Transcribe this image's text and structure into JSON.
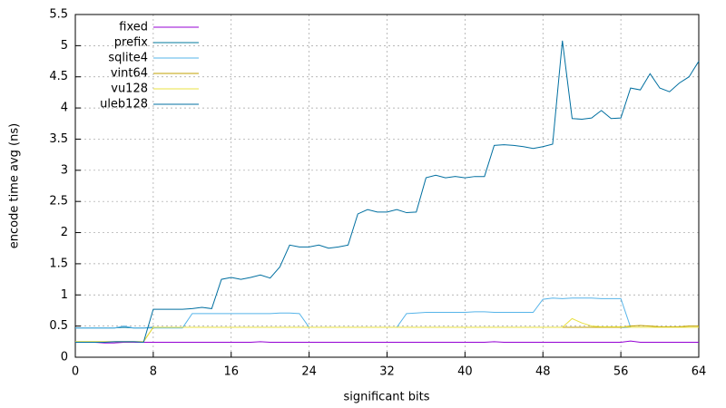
{
  "chart_data": {
    "type": "line",
    "x_label": "significant bits",
    "y_label": "encode time avg (ns)",
    "x": [
      0,
      1,
      2,
      3,
      4,
      5,
      6,
      7,
      8,
      9,
      10,
      11,
      12,
      13,
      14,
      15,
      16,
      17,
      18,
      19,
      20,
      21,
      22,
      23,
      24,
      25,
      26,
      27,
      28,
      29,
      30,
      31,
      32,
      33,
      34,
      35,
      36,
      37,
      38,
      39,
      40,
      41,
      42,
      43,
      44,
      45,
      46,
      47,
      48,
      49,
      50,
      51,
      52,
      53,
      54,
      55,
      56,
      57,
      58,
      59,
      60,
      61,
      62,
      63,
      64
    ],
    "xlim": [
      0,
      64
    ],
    "xticks": [
      0,
      8,
      16,
      24,
      32,
      40,
      48,
      56,
      64
    ],
    "ylim": [
      0,
      5.5
    ],
    "yticks": [
      0,
      0.5,
      1,
      1.5,
      2,
      2.5,
      3,
      3.5,
      4,
      4.5,
      5,
      5.5
    ],
    "grid": true,
    "legend": "top-left",
    "series": [
      {
        "name": "fixed",
        "color": "#9400d3",
        "values": [
          0.24,
          0.24,
          0.24,
          0.23,
          0.23,
          0.24,
          0.24,
          0.24,
          0.24,
          0.24,
          0.24,
          0.24,
          0.24,
          0.24,
          0.24,
          0.24,
          0.24,
          0.24,
          0.24,
          0.25,
          0.24,
          0.24,
          0.24,
          0.24,
          0.24,
          0.24,
          0.24,
          0.24,
          0.24,
          0.24,
          0.24,
          0.24,
          0.24,
          0.24,
          0.24,
          0.24,
          0.24,
          0.24,
          0.24,
          0.24,
          0.24,
          0.24,
          0.24,
          0.25,
          0.24,
          0.24,
          0.24,
          0.24,
          0.24,
          0.24,
          0.24,
          0.24,
          0.24,
          0.24,
          0.24,
          0.24,
          0.24,
          0.26,
          0.24,
          0.24,
          0.24,
          0.24,
          0.24,
          0.24,
          0.24
        ]
      },
      {
        "name": "prefix",
        "color": "#00789e",
        "values": [
          0.47,
          0.47,
          0.47,
          0.47,
          0.47,
          0.48,
          0.47,
          0.47,
          0.48,
          0.48,
          0.48,
          0.48,
          0.48,
          0.48,
          0.48,
          0.48,
          0.48,
          0.48,
          0.48,
          0.48,
          0.48,
          0.48,
          0.48,
          0.48,
          0.48,
          0.48,
          0.48,
          0.48,
          0.48,
          0.48,
          0.48,
          0.48,
          0.48,
          0.48,
          0.48,
          0.48,
          0.48,
          0.48,
          0.48,
          0.48,
          0.48,
          0.48,
          0.48,
          0.48,
          0.48,
          0.48,
          0.48,
          0.48,
          0.48,
          0.48,
          0.48,
          0.48,
          0.48,
          0.48,
          0.48,
          0.48,
          0.48,
          0.48,
          0.48,
          0.48,
          0.48,
          0.48,
          0.48,
          0.48,
          0.48
        ]
      },
      {
        "name": "sqlite4",
        "color": "#56b4e9",
        "values": [
          0.47,
          0.47,
          0.47,
          0.47,
          0.47,
          0.5,
          0.47,
          0.47,
          0.47,
          0.47,
          0.47,
          0.47,
          0.7,
          0.7,
          0.7,
          0.7,
          0.7,
          0.7,
          0.7,
          0.7,
          0.7,
          0.71,
          0.71,
          0.7,
          0.48,
          0.48,
          0.48,
          0.48,
          0.48,
          0.48,
          0.48,
          0.48,
          0.48,
          0.48,
          0.7,
          0.71,
          0.72,
          0.72,
          0.72,
          0.72,
          0.72,
          0.73,
          0.73,
          0.72,
          0.72,
          0.72,
          0.72,
          0.72,
          0.93,
          0.95,
          0.94,
          0.95,
          0.95,
          0.95,
          0.94,
          0.94,
          0.94,
          0.48,
          0.48,
          0.48,
          0.48,
          0.48,
          0.48,
          0.48,
          0.48
        ]
      },
      {
        "name": "vint64",
        "color": "#c0a000",
        "values": [
          0.25,
          0.25,
          0.25,
          0.25,
          0.25,
          0.25,
          0.25,
          0.25,
          0.48,
          0.48,
          0.48,
          0.48,
          0.48,
          0.48,
          0.48,
          0.48,
          0.48,
          0.48,
          0.48,
          0.48,
          0.48,
          0.48,
          0.48,
          0.48,
          0.48,
          0.48,
          0.48,
          0.48,
          0.48,
          0.48,
          0.48,
          0.48,
          0.48,
          0.48,
          0.48,
          0.48,
          0.48,
          0.48,
          0.48,
          0.48,
          0.48,
          0.48,
          0.48,
          0.48,
          0.48,
          0.48,
          0.48,
          0.48,
          0.48,
          0.48,
          0.48,
          0.48,
          0.48,
          0.48,
          0.48,
          0.48,
          0.48,
          0.5,
          0.51,
          0.5,
          0.49,
          0.49,
          0.49,
          0.5,
          0.5
        ]
      },
      {
        "name": "vu128",
        "color": "#e8e040",
        "values": [
          0.25,
          0.25,
          0.25,
          0.25,
          0.25,
          0.25,
          0.25,
          0.25,
          0.48,
          0.48,
          0.48,
          0.48,
          0.48,
          0.48,
          0.48,
          0.48,
          0.48,
          0.48,
          0.48,
          0.48,
          0.48,
          0.48,
          0.48,
          0.48,
          0.48,
          0.48,
          0.48,
          0.48,
          0.48,
          0.48,
          0.48,
          0.48,
          0.48,
          0.48,
          0.48,
          0.48,
          0.48,
          0.48,
          0.48,
          0.48,
          0.48,
          0.48,
          0.48,
          0.48,
          0.48,
          0.48,
          0.48,
          0.48,
          0.48,
          0.48,
          0.48,
          0.62,
          0.55,
          0.5,
          0.49,
          0.49,
          0.49,
          0.48,
          0.48,
          0.48,
          0.48,
          0.48,
          0.48,
          0.48,
          0.48
        ]
      },
      {
        "name": "uleb128",
        "color": "#006fa0",
        "values": [
          0.24,
          0.24,
          0.24,
          0.24,
          0.25,
          0.25,
          0.25,
          0.24,
          0.77,
          0.77,
          0.77,
          0.77,
          0.78,
          0.8,
          0.78,
          1.25,
          1.28,
          1.25,
          1.28,
          1.32,
          1.27,
          1.45,
          1.8,
          1.77,
          1.77,
          1.8,
          1.75,
          1.77,
          1.8,
          2.3,
          2.37,
          2.33,
          2.33,
          2.37,
          2.32,
          2.33,
          2.88,
          2.92,
          2.88,
          2.9,
          2.88,
          2.9,
          2.9,
          3.4,
          3.41,
          3.4,
          3.38,
          3.35,
          3.38,
          3.42,
          5.08,
          3.83,
          3.82,
          3.84,
          3.96,
          3.83,
          3.84,
          4.32,
          4.29,
          4.55,
          4.32,
          4.26,
          4.4,
          4.5,
          4.75
        ]
      }
    ]
  }
}
